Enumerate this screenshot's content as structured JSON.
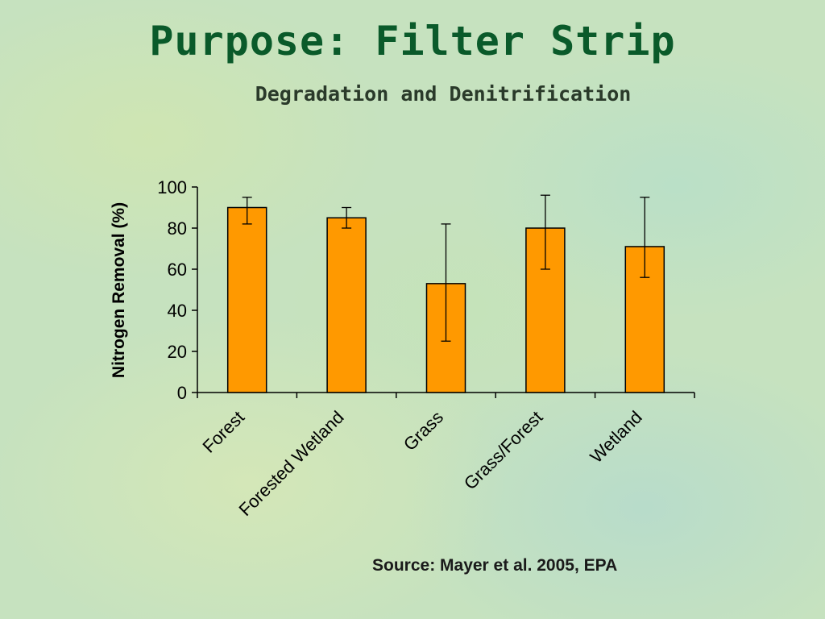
{
  "slide": {
    "title": "Purpose: Filter Strip",
    "subtitle": "Degradation and Denitrification",
    "source": "Source: Mayer et al. 2005, EPA"
  },
  "colors": {
    "bar_fill": "#ff9900",
    "bar_stroke": "#000000",
    "title_color": "#0a5a2a",
    "background": "#c6e2bf"
  },
  "chart_data": {
    "type": "bar",
    "categories": [
      "Forest",
      "Forested Wetland",
      "Grass",
      "Grass/Forest",
      "Wetland"
    ],
    "values": [
      90,
      85,
      53,
      80,
      71
    ],
    "error_bars": [
      [
        82,
        95
      ],
      [
        80,
        90
      ],
      [
        25,
        82
      ],
      [
        60,
        96
      ],
      [
        56,
        95
      ]
    ],
    "ylabel": "Nitrogen Removal (%)",
    "xlabel": "",
    "ylim": [
      0,
      100
    ],
    "yticks": [
      0,
      20,
      40,
      60,
      80,
      100
    ],
    "grid": false,
    "legend": "none"
  }
}
